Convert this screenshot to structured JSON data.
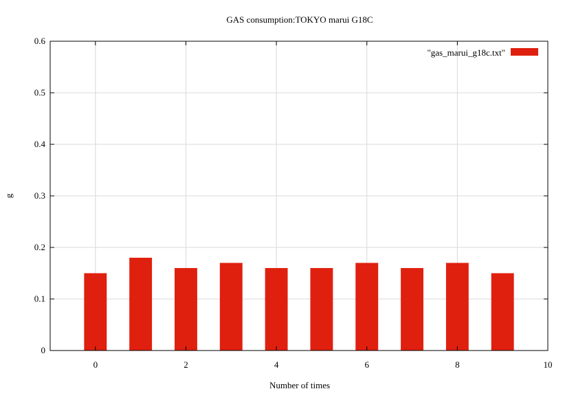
{
  "chart_data": {
    "type": "bar",
    "title": "GAS consumption:TOKYO marui G18C",
    "xlabel": "Number of times",
    "ylabel": "g",
    "xlim": [
      -1,
      10
    ],
    "ylim": [
      0,
      0.6
    ],
    "x_ticks": [
      0,
      2,
      4,
      6,
      8,
      10
    ],
    "y_ticks": [
      0,
      0.1,
      0.2,
      0.3,
      0.4,
      0.5,
      0.6
    ],
    "x_tick_labels": [
      "0",
      "2",
      "4",
      "6",
      "8",
      "10"
    ],
    "y_tick_labels": [
      "0",
      "0.1",
      "0.2",
      "0.3",
      "0.4",
      "0.5",
      "0.6"
    ],
    "grid": true,
    "legend_position": "top-right",
    "bar_width": 0.5,
    "series": [
      {
        "name": "\"gas_marui_g18c.txt\"",
        "color": "#e0200f",
        "x": [
          0,
          1,
          2,
          3,
          4,
          5,
          6,
          7,
          8,
          9
        ],
        "values": [
          0.15,
          0.18,
          0.16,
          0.17,
          0.16,
          0.16,
          0.17,
          0.16,
          0.17,
          0.15
        ]
      }
    ]
  }
}
